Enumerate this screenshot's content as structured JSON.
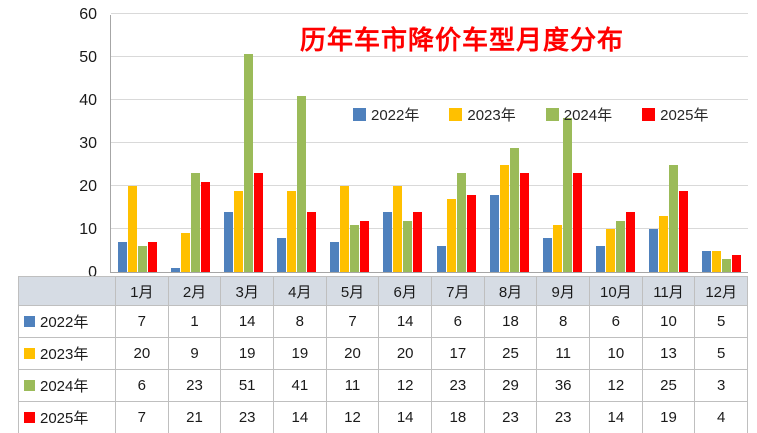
{
  "chart_data": {
    "type": "bar",
    "title": "历年车市降价车型月度分布",
    "title_color": "#FF0000",
    "categories": [
      "1月",
      "2月",
      "3月",
      "4月",
      "5月",
      "6月",
      "7月",
      "8月",
      "9月",
      "10月",
      "11月",
      "12月"
    ],
    "series": [
      {
        "name": "2022年",
        "color": "#4F81BD",
        "values": [
          7,
          1,
          14,
          8,
          7,
          14,
          6,
          18,
          8,
          6,
          10,
          5
        ]
      },
      {
        "name": "2023年",
        "color": "#FFC000",
        "values": [
          20,
          9,
          19,
          19,
          20,
          20,
          17,
          25,
          11,
          10,
          13,
          5
        ]
      },
      {
        "name": "2024年",
        "color": "#9BBB59",
        "values": [
          6,
          23,
          51,
          41,
          11,
          12,
          23,
          29,
          36,
          12,
          25,
          3
        ]
      },
      {
        "name": "2025年",
        "color": "#FF0000",
        "values": [
          7,
          21,
          23,
          14,
          12,
          14,
          18,
          23,
          23,
          14,
          19,
          4
        ]
      }
    ],
    "ylim": [
      0,
      60
    ],
    "yticks": [
      0,
      10,
      20,
      30,
      40,
      50,
      60
    ],
    "grid": true,
    "legend_position": "inside-top",
    "show_data_table": true
  }
}
